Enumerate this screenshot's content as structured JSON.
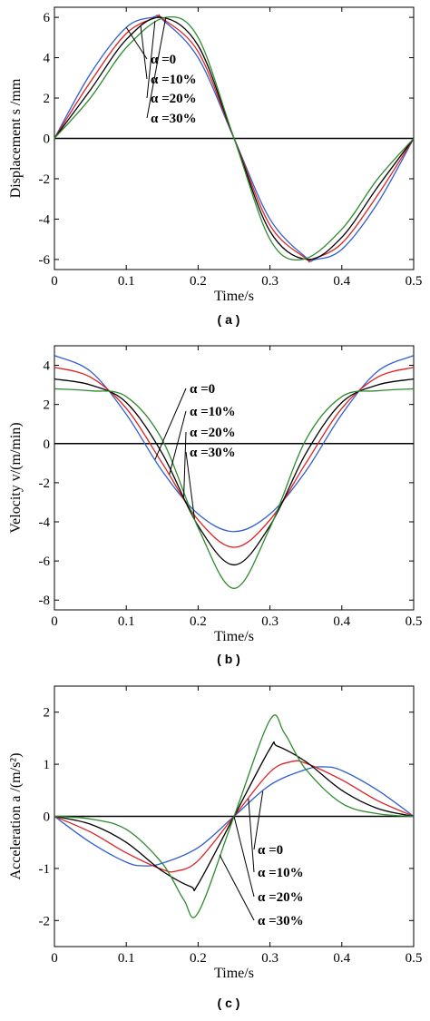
{
  "colors": {
    "alpha_0": "#2f5fd0",
    "alpha_10": "#e02020",
    "alpha_20": "#000000",
    "alpha_30": "#2e8b2e"
  },
  "chart_data": [
    {
      "type": "line",
      "panel_label": "( a )",
      "xlabel": "Time/s",
      "ylabel": "Displacement s /mm",
      "xlim": [
        0,
        0.5
      ],
      "ylim": [
        -6.5,
        6.5
      ],
      "xticks": [
        "0",
        "0.1",
        "0.2",
        "0.3",
        "0.4",
        "0.5"
      ],
      "yticks": [
        "6",
        "4",
        "2",
        "0",
        "-2",
        "-4",
        "-6"
      ],
      "legend": [
        "α =0",
        "α =10%",
        "α =20%",
        "α =30%"
      ],
      "series": [
        {
          "name": "α =0",
          "color": "#2f5fd0",
          "x": [
            0,
            0.05,
            0.1,
            0.137,
            0.15,
            0.2,
            0.25,
            0.3,
            0.35,
            0.363,
            0.4,
            0.45,
            0.5
          ],
          "y": [
            0,
            3.2,
            5.5,
            6.0,
            5.9,
            4.0,
            0,
            -4.0,
            -5.9,
            -6.0,
            -5.5,
            -3.2,
            0
          ]
        },
        {
          "name": "α =10%",
          "color": "#e02020",
          "x": [
            0,
            0.05,
            0.1,
            0.142,
            0.15,
            0.2,
            0.25,
            0.3,
            0.35,
            0.358,
            0.4,
            0.45,
            0.5
          ],
          "y": [
            0,
            2.8,
            5.2,
            6.0,
            5.95,
            4.3,
            0,
            -4.3,
            -5.95,
            -6.0,
            -5.2,
            -2.8,
            0
          ]
        },
        {
          "name": "α =20%",
          "color": "#000000",
          "x": [
            0,
            0.05,
            0.1,
            0.148,
            0.2,
            0.25,
            0.3,
            0.352,
            0.4,
            0.45,
            0.5
          ],
          "y": [
            0,
            2.4,
            4.9,
            6.0,
            4.6,
            0,
            -4.6,
            -6.0,
            -4.9,
            -2.4,
            0
          ]
        },
        {
          "name": "α =30%",
          "color": "#2e8b2e",
          "x": [
            0,
            0.05,
            0.1,
            0.155,
            0.2,
            0.25,
            0.3,
            0.345,
            0.4,
            0.45,
            0.5
          ],
          "y": [
            0,
            2.0,
            4.5,
            6.0,
            5.0,
            0,
            -5.0,
            -6.0,
            -4.5,
            -2.0,
            0
          ]
        }
      ]
    },
    {
      "type": "line",
      "panel_label": "( b )",
      "xlabel": "Time/s",
      "ylabel": "Velocity v/(m/min)",
      "xlim": [
        0,
        0.5
      ],
      "ylim": [
        -8.5,
        5.0
      ],
      "xticks": [
        "0",
        "0.1",
        "0.2",
        "0.3",
        "0.4",
        "0.5"
      ],
      "yticks": [
        "4",
        "2",
        "0",
        "-2",
        "-4",
        "-6",
        "-8"
      ],
      "legend": [
        "α =0",
        "α =10%",
        "α =20%",
        "α =30%"
      ],
      "series": [
        {
          "name": "α =0",
          "color": "#2f5fd0",
          "x": [
            0,
            0.05,
            0.1,
            0.15,
            0.2,
            0.25,
            0.3,
            0.35,
            0.4,
            0.45,
            0.5
          ],
          "y": [
            4.5,
            3.7,
            1.5,
            -1.4,
            -3.6,
            -4.5,
            -3.6,
            -1.4,
            1.5,
            3.7,
            4.5
          ]
        },
        {
          "name": "α =10%",
          "color": "#e02020",
          "x": [
            0,
            0.05,
            0.1,
            0.15,
            0.2,
            0.25,
            0.3,
            0.35,
            0.4,
            0.45,
            0.5
          ],
          "y": [
            3.9,
            3.4,
            1.8,
            -1.0,
            -3.9,
            -5.3,
            -3.9,
            -1.0,
            1.8,
            3.4,
            3.9
          ]
        },
        {
          "name": "α =20%",
          "color": "#000000",
          "x": [
            0,
            0.05,
            0.1,
            0.15,
            0.2,
            0.25,
            0.3,
            0.35,
            0.4,
            0.45,
            0.5
          ],
          "y": [
            3.3,
            3.0,
            2.1,
            -0.5,
            -4.2,
            -6.2,
            -4.2,
            -0.5,
            2.1,
            3.0,
            3.3
          ]
        },
        {
          "name": "α =30%",
          "color": "#2e8b2e",
          "x": [
            0,
            0.05,
            0.1,
            0.15,
            0.2,
            0.25,
            0.3,
            0.35,
            0.4,
            0.45,
            0.5
          ],
          "y": [
            2.8,
            2.7,
            2.4,
            0.2,
            -4.3,
            -7.4,
            -4.3,
            0.2,
            2.4,
            2.7,
            2.8
          ]
        }
      ]
    },
    {
      "type": "line",
      "panel_label": "( c )",
      "xlabel": "Time/s",
      "ylabel": "Acceleration a /(m/s²)",
      "xlim": [
        0,
        0.5
      ],
      "ylim": [
        -2.5,
        2.5
      ],
      "xticks": [
        "0",
        "0.1",
        "0.2",
        "0.3",
        "0.4",
        "0.5"
      ],
      "yticks": [
        "2",
        "1",
        "0",
        "-1",
        "-2"
      ],
      "legend": [
        "α =0",
        "α =10%",
        "α =20%",
        "α =30%"
      ],
      "series": [
        {
          "name": "α =0",
          "color": "#2f5fd0",
          "x": [
            0,
            0.05,
            0.1,
            0.125,
            0.15,
            0.2,
            0.25,
            0.3,
            0.35,
            0.375,
            0.4,
            0.45,
            0.5
          ],
          "y": [
            0,
            -0.5,
            -0.88,
            -0.95,
            -0.9,
            -0.6,
            0,
            0.6,
            0.9,
            0.95,
            0.88,
            0.5,
            0
          ]
        },
        {
          "name": "α =10%",
          "color": "#e02020",
          "x": [
            0,
            0.05,
            0.1,
            0.15,
            0.17,
            0.2,
            0.25,
            0.3,
            0.33,
            0.35,
            0.4,
            0.45,
            0.5
          ],
          "y": [
            0,
            -0.3,
            -0.7,
            -1.02,
            -1.05,
            -0.85,
            0,
            0.85,
            1.05,
            1.02,
            0.7,
            0.3,
            0
          ]
        },
        {
          "name": "α =20%",
          "color": "#000000",
          "x": [
            0,
            0.05,
            0.1,
            0.15,
            0.19,
            0.2,
            0.25,
            0.3,
            0.31,
            0.35,
            0.4,
            0.45,
            0.5
          ],
          "y": [
            0,
            -0.15,
            -0.5,
            -1.05,
            -1.35,
            -1.3,
            0,
            1.3,
            1.35,
            1.05,
            0.5,
            0.15,
            0
          ]
        },
        {
          "name": "α =30%",
          "color": "#2e8b2e",
          "x": [
            0,
            0.05,
            0.1,
            0.15,
            0.18,
            0.2,
            0.25,
            0.3,
            0.32,
            0.35,
            0.4,
            0.45,
            0.5
          ],
          "y": [
            0,
            -0.05,
            -0.25,
            -0.9,
            -1.6,
            -1.85,
            0,
            1.85,
            1.6,
            0.9,
            0.25,
            0.05,
            0
          ]
        }
      ]
    }
  ]
}
